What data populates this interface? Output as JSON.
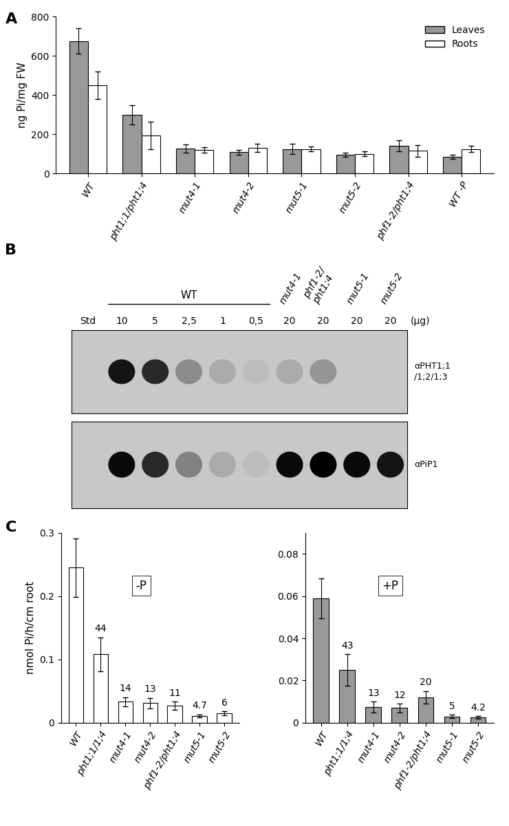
{
  "chart_data": [
    {
      "type": "bar",
      "panel": "A",
      "categories": [
        "WT",
        "pht1;1/pht1;4",
        "mut4-1",
        "mut4-2",
        "mut5-1",
        "mut5-2",
        "phf1-2/pht1;4",
        "WT -P"
      ],
      "y_label": "ng Pi/mg FW",
      "series": [
        {
          "name": "Leaves",
          "color": "#999999",
          "values": [
            675,
            298,
            127,
            108,
            125,
            95,
            142,
            85
          ],
          "errors": [
            65,
            50,
            22,
            12,
            25,
            10,
            28,
            10
          ]
        },
        {
          "name": "Roots",
          "color": "#ffffff",
          "values": [
            448,
            195,
            120,
            130,
            125,
            100,
            115,
            125
          ],
          "errors": [
            70,
            70,
            15,
            20,
            12,
            12,
            30,
            15
          ]
        }
      ],
      "ylim": [
        0,
        800
      ],
      "yticks": [
        0,
        200,
        400,
        600,
        800
      ],
      "legend": "upper right",
      "grid": false
    },
    {
      "type": "blot",
      "panel": "B",
      "lane_labels": [
        "Std",
        "10",
        "5",
        "2,5",
        "1",
        "0,5",
        "20",
        "20",
        "20",
        "20"
      ],
      "samples": [
        null,
        "WT",
        "WT",
        "WT",
        "WT",
        "WT",
        "mut4-1",
        "phf1-2/\npht1;4",
        "mut5-1",
        "mut5-2"
      ],
      "unit": "(μg)",
      "rows": [
        {
          "name": "αPHT1;1\n/1;2/1;3",
          "intensities": [
            0,
            0.9,
            0.8,
            0.3,
            0.15,
            0.05,
            0.15,
            0.25,
            0,
            0
          ]
        },
        {
          "name": "αPiP1",
          "intensities": [
            0,
            0.95,
            0.8,
            0.35,
            0.15,
            0.05,
            0.95,
            1.0,
            0.95,
            0.9
          ]
        }
      ]
    },
    {
      "type": "bar",
      "panel": "C",
      "subtitle": "-P",
      "categories": [
        "WT",
        "pht1;1/1;4",
        "mut4-1",
        "mut4-2",
        "phf1-2/pht1;4",
        "mut5-1",
        "mut5-2"
      ],
      "y_label": "nmol Pi/h/cm root",
      "values": [
        0.245,
        0.108,
        0.033,
        0.031,
        0.027,
        0.011,
        0.015
      ],
      "errors": [
        0.046,
        0.027,
        0.007,
        0.008,
        0.006,
        0.002,
        0.003
      ],
      "annotations": [
        null,
        "44",
        "14",
        "13",
        "11",
        "4.7",
        "6"
      ],
      "color": "#ffffff",
      "ylim": [
        0,
        0.3
      ],
      "yticks": [
        0,
        0.1,
        0.2,
        0.3
      ],
      "grid": false
    },
    {
      "type": "bar",
      "subtitle": "+P",
      "categories": [
        "WT",
        "pht1;1/1;4",
        "mut4-1",
        "mut4-2",
        "phf1-2/pht1;4",
        "mut5-1",
        "mut5-2"
      ],
      "values": [
        0.059,
        0.025,
        0.0075,
        0.007,
        0.012,
        0.003,
        0.0025
      ],
      "errors": [
        0.0095,
        0.0075,
        0.0025,
        0.002,
        0.003,
        0.0008,
        0.0006
      ],
      "annotations": [
        null,
        "43",
        "13",
        "12",
        "20",
        "5",
        "4.2"
      ],
      "color": "#999999",
      "ylim": [
        0,
        0.09
      ],
      "yticks": [
        0,
        0.02,
        0.04,
        0.06,
        0.08
      ],
      "grid": false
    }
  ]
}
